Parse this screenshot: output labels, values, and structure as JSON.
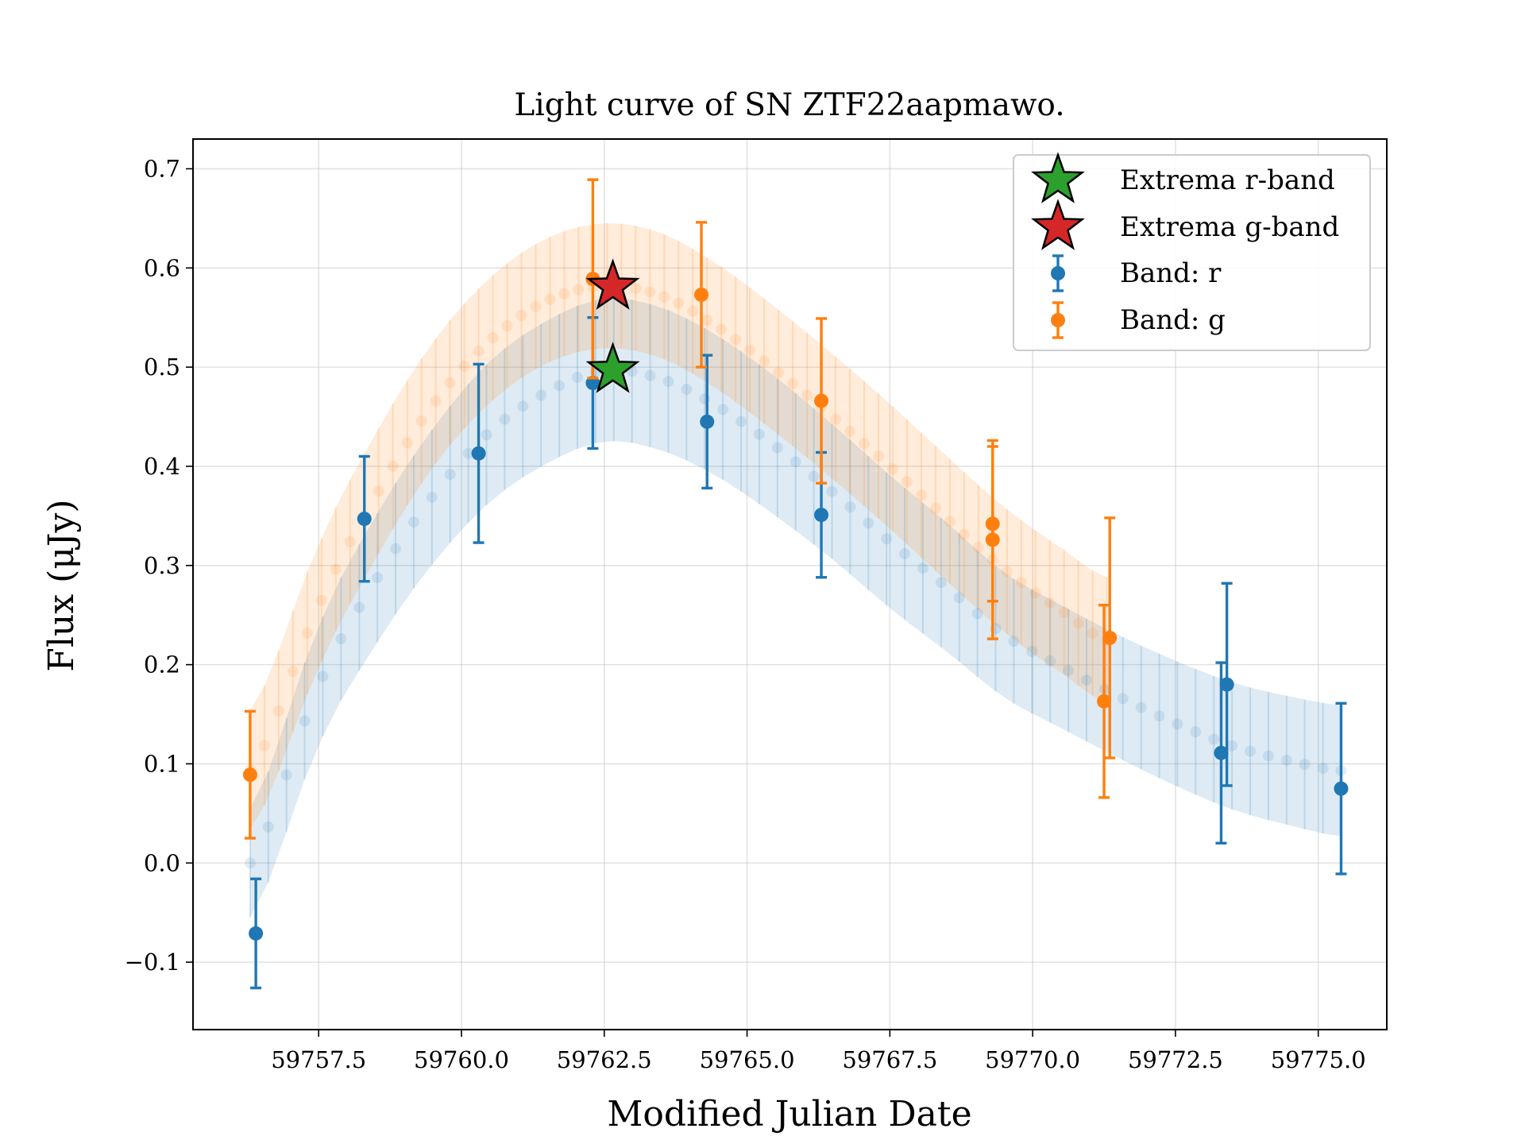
{
  "chart_data": {
    "type": "scatter",
    "title": "Light curve of SN ZTF22aapmawo.",
    "xlabel": "Modified Julian Date",
    "ylabel": "Flux (μJy)",
    "xlim": [
      59755.3,
      59776.2
    ],
    "ylim": [
      -0.168,
      0.73
    ],
    "x_ticks": [
      59757.5,
      59760.0,
      59762.5,
      59765.0,
      59767.5,
      59770.0,
      59772.5,
      59775.0
    ],
    "x_tick_labels": [
      "59757.5",
      "59760.0",
      "59762.5",
      "59765.0",
      "59767.5",
      "59770.0",
      "59772.5",
      "59775.0"
    ],
    "y_ticks": [
      -0.1,
      0.0,
      0.1,
      0.2,
      0.3,
      0.4,
      0.5,
      0.6,
      0.7
    ],
    "y_tick_labels": [
      "−0.1",
      "0.0",
      "0.1",
      "0.2",
      "0.3",
      "0.4",
      "0.5",
      "0.6",
      "0.7"
    ],
    "grid": true,
    "legend_position": "top-right",
    "colors": {
      "r": "#1f77b4",
      "g": "#ff7f0e",
      "extrema_r": "#2ca02c",
      "extrema_g": "#d62728"
    },
    "series": [
      {
        "name": "Band: r",
        "band": "r",
        "kind": "errorbar",
        "points": [
          {
            "x": 59756.4,
            "y": -0.071,
            "err": 0.055
          },
          {
            "x": 59758.3,
            "y": 0.347,
            "err": 0.063
          },
          {
            "x": 59760.3,
            "y": 0.413,
            "err": 0.09
          },
          {
            "x": 59762.3,
            "y": 0.484,
            "err": 0.066
          },
          {
            "x": 59764.3,
            "y": 0.445,
            "err": 0.067
          },
          {
            "x": 59766.3,
            "y": 0.351,
            "err": 0.063
          },
          {
            "x": 59773.3,
            "y": 0.111,
            "err": 0.091
          },
          {
            "x": 59773.4,
            "y": 0.18,
            "err": 0.102
          },
          {
            "x": 59775.4,
            "y": 0.075,
            "err": 0.086
          }
        ]
      },
      {
        "name": "Band: g",
        "band": "g",
        "kind": "errorbar",
        "points": [
          {
            "x": 59756.3,
            "y": 0.089,
            "err": 0.064
          },
          {
            "x": 59762.3,
            "y": 0.589,
            "err": 0.1
          },
          {
            "x": 59764.2,
            "y": 0.573,
            "err": 0.073
          },
          {
            "x": 59766.3,
            "y": 0.466,
            "err": 0.083
          },
          {
            "x": 59769.3,
            "y": 0.342,
            "err": 0.078
          },
          {
            "x": 59769.3,
            "y": 0.326,
            "err": 0.1
          },
          {
            "x": 59771.25,
            "y": 0.163,
            "err": 0.097
          },
          {
            "x": 59771.35,
            "y": 0.227,
            "err": 0.121
          }
        ]
      },
      {
        "name": "Extrema r-band",
        "band": "r",
        "kind": "extremum",
        "points": [
          {
            "x": 59762.65,
            "y": 0.497
          }
        ]
      },
      {
        "name": "Extrema g-band",
        "band": "g",
        "kind": "extremum",
        "points": [
          {
            "x": 59762.65,
            "y": 0.581
          }
        ]
      },
      {
        "band": "r",
        "kind": "model",
        "x_range": [
          59756.3,
          59775.4
        ],
        "anchors": [
          {
            "x": 59756.3,
            "y": 0.0,
            "err": 0.055
          },
          {
            "x": 59757.5,
            "y": 0.178,
            "err": 0.06
          },
          {
            "x": 59758.5,
            "y": 0.285,
            "err": 0.065
          },
          {
            "x": 59759.5,
            "y": 0.37,
            "err": 0.068
          },
          {
            "x": 59760.5,
            "y": 0.435,
            "err": 0.071
          },
          {
            "x": 59761.5,
            "y": 0.475,
            "err": 0.072
          },
          {
            "x": 59762.5,
            "y": 0.497,
            "err": 0.072
          },
          {
            "x": 59763.5,
            "y": 0.488,
            "err": 0.072
          },
          {
            "x": 59764.5,
            "y": 0.46,
            "err": 0.071
          },
          {
            "x": 59765.5,
            "y": 0.42,
            "err": 0.07
          },
          {
            "x": 59766.5,
            "y": 0.374,
            "err": 0.068
          },
          {
            "x": 59767.5,
            "y": 0.324,
            "err": 0.067
          },
          {
            "x": 59768.5,
            "y": 0.278,
            "err": 0.065
          },
          {
            "x": 59769.5,
            "y": 0.23,
            "err": 0.063
          },
          {
            "x": 59770.5,
            "y": 0.198,
            "err": 0.062
          },
          {
            "x": 59771.5,
            "y": 0.168,
            "err": 0.062
          },
          {
            "x": 59772.5,
            "y": 0.141,
            "err": 0.063
          },
          {
            "x": 59773.5,
            "y": 0.118,
            "err": 0.064
          },
          {
            "x": 59774.5,
            "y": 0.103,
            "err": 0.065
          },
          {
            "x": 59775.4,
            "y": 0.093,
            "err": 0.066
          }
        ]
      },
      {
        "band": "g",
        "kind": "model",
        "x_range": [
          59756.3,
          59771.3
        ],
        "anchors": [
          {
            "x": 59756.3,
            "y": 0.094,
            "err": 0.06
          },
          {
            "x": 59757.5,
            "y": 0.258,
            "err": 0.062
          },
          {
            "x": 59758.5,
            "y": 0.37,
            "err": 0.063
          },
          {
            "x": 59759.5,
            "y": 0.462,
            "err": 0.063
          },
          {
            "x": 59760.5,
            "y": 0.527,
            "err": 0.063
          },
          {
            "x": 59761.5,
            "y": 0.567,
            "err": 0.063
          },
          {
            "x": 59762.5,
            "y": 0.582,
            "err": 0.063
          },
          {
            "x": 59763.5,
            "y": 0.572,
            "err": 0.063
          },
          {
            "x": 59764.5,
            "y": 0.54,
            "err": 0.063
          },
          {
            "x": 59765.5,
            "y": 0.497,
            "err": 0.063
          },
          {
            "x": 59766.5,
            "y": 0.45,
            "err": 0.063
          },
          {
            "x": 59767.5,
            "y": 0.4,
            "err": 0.063
          },
          {
            "x": 59768.5,
            "y": 0.347,
            "err": 0.063
          },
          {
            "x": 59769.5,
            "y": 0.296,
            "err": 0.063
          },
          {
            "x": 59770.5,
            "y": 0.255,
            "err": 0.063
          },
          {
            "x": 59771.3,
            "y": 0.225,
            "err": 0.063
          }
        ]
      }
    ],
    "legend": [
      {
        "label": "Extrema r-band",
        "marker": "star",
        "color_key": "extrema_r"
      },
      {
        "label": "Extrema g-band",
        "marker": "star",
        "color_key": "extrema_g"
      },
      {
        "label": "Band: r",
        "marker": "errorbar",
        "color_key": "r"
      },
      {
        "label": "Band: g",
        "marker": "errorbar",
        "color_key": "g"
      }
    ]
  }
}
